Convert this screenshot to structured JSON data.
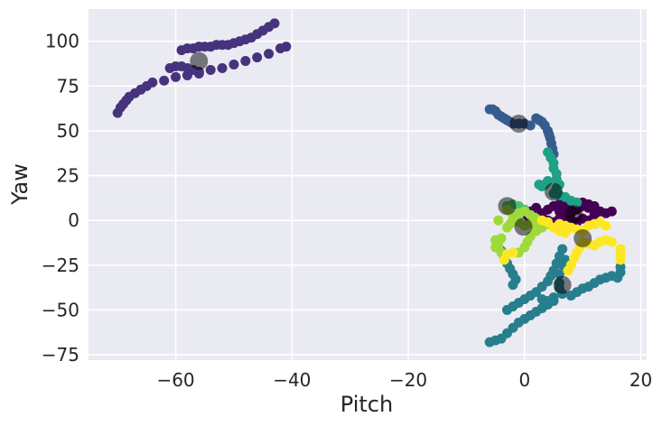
{
  "chart_data": {
    "type": "scatter",
    "title": "",
    "xlabel": "Pitch",
    "ylabel": "Yaw",
    "xlim": [
      -75,
      21
    ],
    "ylim": [
      -78,
      118
    ],
    "xticks": [
      -60,
      -40,
      -20,
      0,
      20
    ],
    "yticks": [
      -75,
      -50,
      -25,
      0,
      25,
      50,
      75,
      100
    ],
    "xtick_labels": [
      "−60",
      "−40",
      "−20",
      "0",
      "20"
    ],
    "ytick_labels": [
      "−75",
      "−50",
      "−25",
      "0",
      "25",
      "50",
      "75",
      "100"
    ],
    "grid": true,
    "background": "#EAEAF2",
    "grid_color": "#FFFFFF",
    "clusters": [
      {
        "color": "#440154",
        "points": [
          [
            0.5,
            3
          ],
          [
            1,
            5
          ],
          [
            2,
            7
          ],
          [
            3,
            4
          ],
          [
            4,
            6
          ],
          [
            5,
            8
          ],
          [
            6,
            5
          ],
          [
            7,
            7
          ],
          [
            8,
            4
          ],
          [
            9,
            6
          ],
          [
            10,
            8
          ],
          [
            11,
            9
          ],
          [
            12,
            3
          ],
          [
            13,
            5
          ],
          [
            14,
            4
          ],
          [
            15,
            5
          ],
          [
            1,
            -1
          ],
          [
            2,
            1
          ],
          [
            3,
            2
          ],
          [
            4,
            0
          ],
          [
            5,
            -1
          ],
          [
            6,
            1
          ],
          [
            7,
            2
          ],
          [
            8,
            0
          ],
          [
            9,
            -1
          ],
          [
            10,
            1
          ],
          [
            11,
            0
          ],
          [
            12,
            -2
          ],
          [
            6,
            9
          ],
          [
            7,
            10
          ],
          [
            8,
            8
          ],
          [
            9,
            9
          ],
          [
            10,
            10
          ],
          [
            11,
            7
          ],
          [
            12,
            8
          ]
        ],
        "centroid": [
          8.5,
          3.5
        ]
      },
      {
        "color": "#46337E",
        "points": [
          [
            -70,
            60
          ],
          [
            -69.5,
            63
          ],
          [
            -69,
            65
          ],
          [
            -68.5,
            67
          ],
          [
            -68,
            69
          ],
          [
            -67,
            71
          ],
          [
            -66,
            73
          ],
          [
            -65,
            75
          ],
          [
            -64,
            77
          ],
          [
            -62,
            78
          ],
          [
            -60,
            80
          ],
          [
            -58,
            81
          ],
          [
            -56,
            82
          ],
          [
            -54,
            84
          ],
          [
            -52,
            85
          ],
          [
            -50,
            87
          ],
          [
            -48,
            89
          ],
          [
            -46,
            91
          ],
          [
            -44,
            93
          ],
          [
            -42,
            96
          ],
          [
            -41,
            97
          ],
          [
            -56,
            83
          ],
          [
            -57,
            84
          ],
          [
            -58,
            85
          ],
          [
            -59,
            86
          ],
          [
            -60,
            86
          ],
          [
            -61,
            85
          ],
          [
            -59,
            95
          ],
          [
            -58,
            96
          ],
          [
            -57,
            96
          ],
          [
            -56,
            97
          ],
          [
            -55,
            97
          ],
          [
            -54,
            97
          ],
          [
            -53,
            98
          ],
          [
            -52,
            98
          ],
          [
            -51,
            98
          ],
          [
            -50,
            99
          ],
          [
            -49,
            100
          ],
          [
            -48,
            101
          ],
          [
            -47,
            102
          ],
          [
            -46,
            104
          ],
          [
            -45,
            106
          ],
          [
            -44,
            108
          ],
          [
            -43,
            110
          ]
        ],
        "centroid": [
          -56,
          89
        ]
      },
      {
        "color": "#365C8D",
        "points": [
          [
            -6,
            62
          ],
          [
            -5.5,
            62
          ],
          [
            -5,
            61
          ],
          [
            -4.5,
            59
          ],
          [
            -4,
            58
          ],
          [
            -3.5,
            57
          ],
          [
            -3,
            56
          ],
          [
            -2.5,
            55
          ],
          [
            -2,
            54
          ],
          [
            -1,
            54
          ],
          [
            0,
            54
          ],
          [
            1,
            53
          ],
          [
            2,
            57
          ],
          [
            2.5,
            56
          ],
          [
            3,
            55
          ],
          [
            3.5,
            53
          ],
          [
            4,
            50
          ],
          [
            4.2,
            48
          ],
          [
            4.4,
            46
          ],
          [
            4.6,
            43
          ],
          [
            4.8,
            40
          ],
          [
            5,
            37
          ]
        ],
        "centroid": [
          -1,
          54
        ]
      },
      {
        "color": "#277F8E",
        "points": [
          [
            -3,
            -50
          ],
          [
            -2,
            -48
          ],
          [
            -1,
            -46
          ],
          [
            0,
            -44
          ],
          [
            1,
            -42
          ],
          [
            2,
            -40
          ],
          [
            3,
            -37
          ],
          [
            4,
            -34
          ],
          [
            4.5,
            -31
          ],
          [
            5,
            -28
          ],
          [
            5.5,
            -24
          ],
          [
            6,
            -20
          ],
          [
            6.5,
            -16
          ],
          [
            6,
            -35
          ],
          [
            6,
            -38
          ],
          [
            6.5,
            -41
          ],
          [
            5,
            -45
          ],
          [
            4,
            -47
          ],
          [
            3,
            -49
          ],
          [
            2,
            -51
          ],
          [
            1,
            -53
          ],
          [
            0,
            -55
          ],
          [
            -1,
            -57
          ],
          [
            -2,
            -60
          ],
          [
            -3,
            -63
          ],
          [
            -4,
            -66
          ],
          [
            -6,
            -68
          ],
          [
            -5,
            -67
          ],
          [
            -2,
            -36
          ],
          [
            -1.5,
            -33
          ],
          [
            -2,
            -30
          ],
          [
            -2.5,
            -27
          ],
          [
            -3,
            -24
          ],
          [
            -3.5,
            -21
          ],
          [
            -4,
            -17
          ],
          [
            6,
            -30
          ],
          [
            6.5,
            -25
          ],
          [
            7,
            -22
          ],
          [
            8,
            -42
          ],
          [
            9,
            -40
          ],
          [
            10,
            -38
          ],
          [
            11,
            -37
          ],
          [
            12,
            -35
          ],
          [
            13,
            -33
          ],
          [
            14,
            -32
          ],
          [
            15,
            -31
          ],
          [
            16,
            -32
          ],
          [
            16.5,
            -29
          ],
          [
            16.5,
            -26
          ],
          [
            4,
            -45
          ],
          [
            3,
            -44
          ],
          [
            5,
            -43
          ]
        ],
        "centroid": [
          6.5,
          -36
        ]
      },
      {
        "color": "#1FA187",
        "points": [
          [
            4,
            38
          ],
          [
            4.5,
            35
          ],
          [
            5,
            32
          ],
          [
            5,
            29
          ],
          [
            5.5,
            26
          ],
          [
            5.5,
            23
          ],
          [
            6,
            20
          ],
          [
            5.5,
            18
          ],
          [
            5,
            15
          ],
          [
            6,
            14
          ],
          [
            7,
            13
          ],
          [
            8,
            11
          ],
          [
            9,
            10
          ],
          [
            4,
            22
          ],
          [
            3.5,
            20
          ],
          [
            3,
            19
          ],
          [
            2.5,
            20
          ]
        ],
        "centroid": [
          5,
          16
        ]
      },
      {
        "color": "#4AC16D",
        "points": [
          [
            -3,
            8
          ],
          [
            -2,
            9
          ],
          [
            -1,
            8
          ],
          [
            0,
            6
          ]
        ],
        "centroid": [
          -3,
          8
        ]
      },
      {
        "color": "#9FDA3A",
        "points": [
          [
            -3,
            -4
          ],
          [
            -2.5,
            -2
          ],
          [
            -2,
            0
          ],
          [
            -1.5,
            2
          ],
          [
            -1,
            4
          ],
          [
            0,
            5
          ],
          [
            1,
            3
          ],
          [
            2,
            1
          ],
          [
            3,
            -1
          ],
          [
            4,
            -2
          ],
          [
            1,
            -2
          ],
          [
            2,
            -3
          ],
          [
            3,
            -4
          ],
          [
            0,
            -3
          ],
          [
            -1,
            -1
          ],
          [
            -4,
            -10
          ],
          [
            -4.5,
            -12
          ],
          [
            -5,
            -15
          ],
          [
            -4,
            -18
          ],
          [
            -3.5,
            -20
          ],
          [
            -5,
            -11
          ],
          [
            -4.5,
            -14
          ],
          [
            1,
            -9
          ],
          [
            0.5,
            -12
          ],
          [
            0,
            -15
          ],
          [
            -1,
            -18
          ],
          [
            2,
            -6
          ],
          [
            -4.5,
            0
          ],
          [
            -3,
            6
          ],
          [
            -2,
            3
          ]
        ],
        "centroid": [
          -0.2,
          -3.5
        ]
      },
      {
        "color": "#FDE725",
        "points": [
          [
            5,
            -4
          ],
          [
            6,
            -2
          ],
          [
            7,
            -3
          ],
          [
            8,
            -4
          ],
          [
            9,
            -5
          ],
          [
            10,
            -6
          ],
          [
            11,
            -3
          ],
          [
            12,
            -2
          ],
          [
            13,
            -1
          ],
          [
            14,
            -3
          ],
          [
            10,
            -12
          ],
          [
            9.5,
            -15
          ],
          [
            9,
            -18
          ],
          [
            8.5,
            -21
          ],
          [
            8,
            -25
          ],
          [
            7.5,
            -28
          ],
          [
            11,
            -13
          ],
          [
            12,
            -14
          ],
          [
            13,
            -12
          ],
          [
            14,
            -11
          ],
          [
            15,
            -12
          ],
          [
            16.5,
            -16
          ],
          [
            16.5,
            -19
          ],
          [
            16.5,
            -22
          ],
          [
            4,
            -1
          ],
          [
            3,
            0
          ],
          [
            6,
            -6
          ],
          [
            7,
            -7
          ],
          [
            -2,
            -18
          ],
          [
            -3,
            -19
          ],
          [
            -3.5,
            -22
          ]
        ],
        "centroid": [
          10,
          -10
        ]
      }
    ],
    "centroid_color": "#000000",
    "centroid_opacity": 0.5
  }
}
